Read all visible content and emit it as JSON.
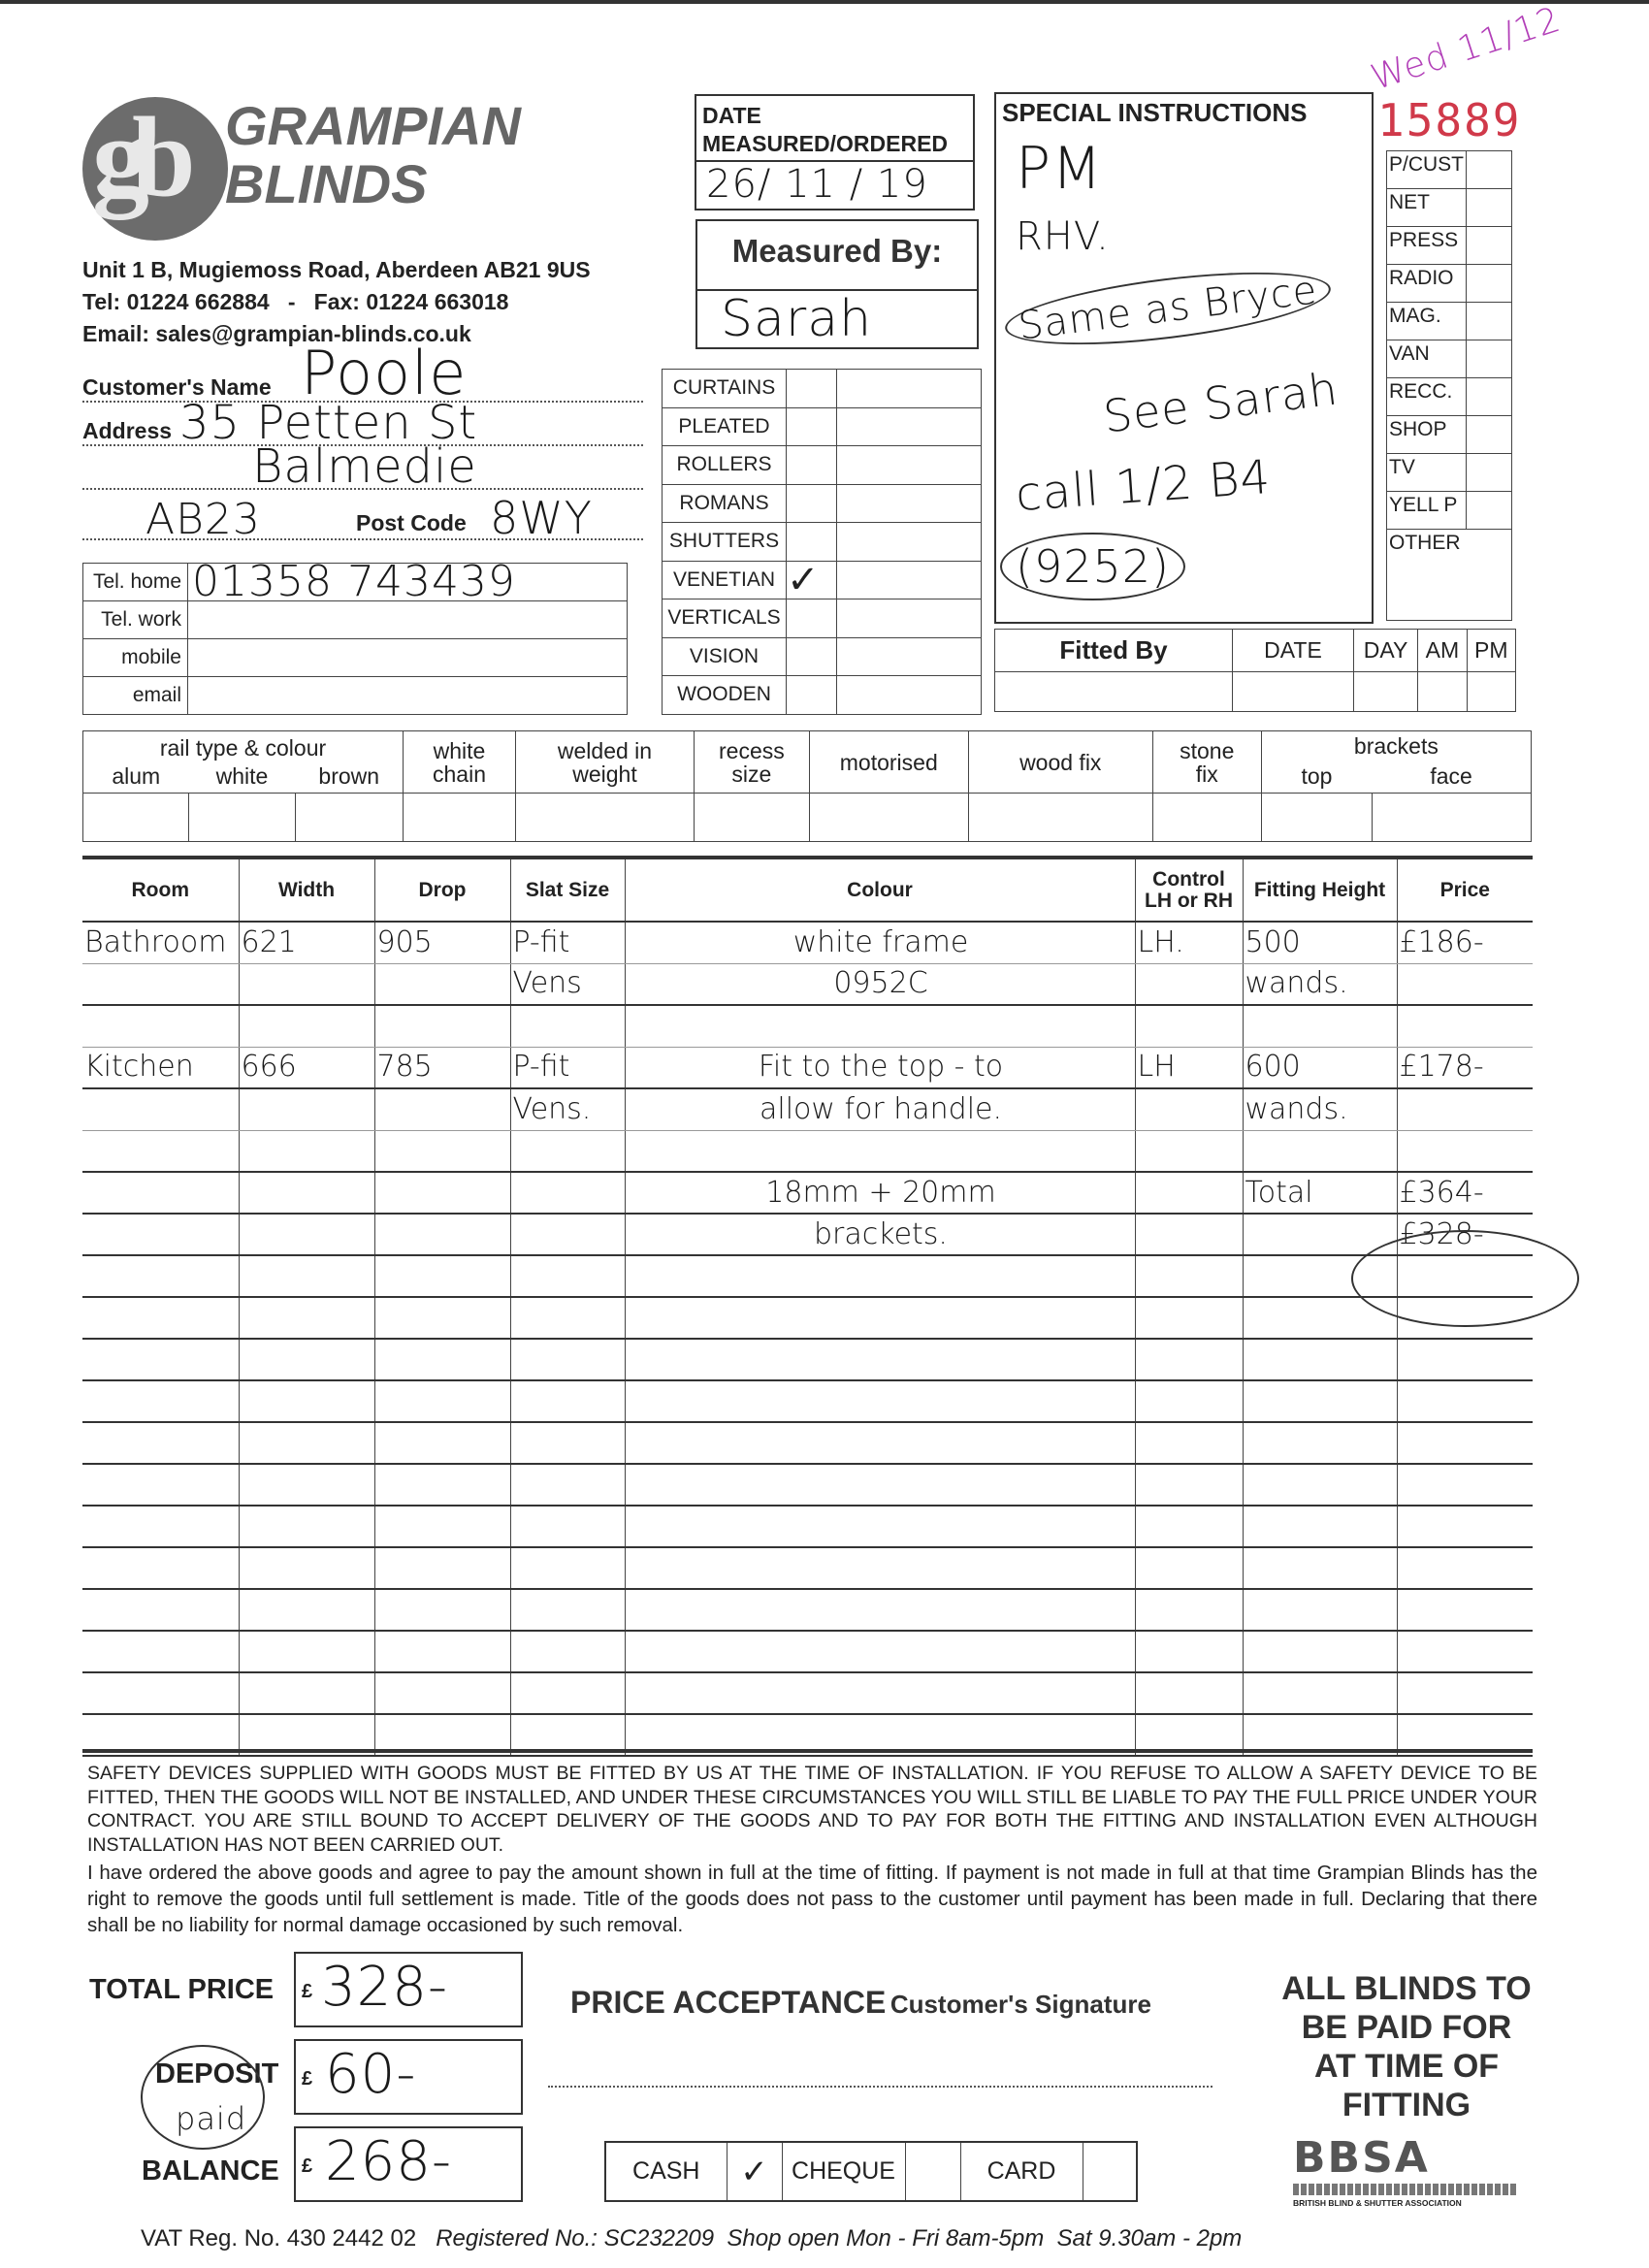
{
  "header": {
    "company_line1": "GRAMPIAN",
    "company_line2": "BLINDS",
    "logo_letters": "gb",
    "address": "Unit 1 B, Mugiemoss Road, Aberdeen AB21 9US",
    "phone": "Tel: 01224 662884   -   Fax: 01224 663018",
    "email": "Email: sales@grampian-blinds.co.uk",
    "date_note": "Wed 11/12",
    "order_number": "15889",
    "accent": "#d0394a",
    "note_color": "#b23fb8"
  },
  "date_box": {
    "label": "DATE MEASURED/ORDERED",
    "value": "26/ 11 / 19"
  },
  "measured_by": {
    "label": "Measured By:",
    "value": "Sarah"
  },
  "customer": {
    "name_label": "Customer's Name",
    "name": "Poole",
    "address_label": "Address",
    "address1": "35 Petten St",
    "address2": "Balmedie",
    "address3": "AB23",
    "postcode_label": "Post Code",
    "postcode": "8WY"
  },
  "contacts": [
    {
      "label": "Tel. home",
      "value": "01358 743439"
    },
    {
      "label": "Tel. work",
      "value": ""
    },
    {
      "label": "mobile",
      "value": ""
    },
    {
      "label": "email",
      "value": ""
    }
  ],
  "blind_types": [
    {
      "label": "CURTAINS",
      "checked": false
    },
    {
      "label": "PLEATED",
      "checked": false
    },
    {
      "label": "ROLLERS",
      "checked": false
    },
    {
      "label": "ROMANS",
      "checked": false
    },
    {
      "label": "SHUTTERS",
      "checked": false
    },
    {
      "label": "VENETIAN",
      "checked": true,
      "mark": "✓"
    },
    {
      "label": "VERTICALS",
      "checked": false
    },
    {
      "label": "VISION",
      "checked": false
    },
    {
      "label": "WOODEN",
      "checked": false
    }
  ],
  "special_instructions": {
    "label": "SPECIAL INSTRUCTIONS",
    "lines": [
      "PM",
      "RHV.",
      "Same as Bryce",
      "See Sarah",
      "call 1/2 B4",
      "(9252)"
    ]
  },
  "sources": [
    "P/CUST",
    "NET",
    "PRESS",
    "RADIO",
    "MAG.",
    "VAN",
    "RECC.",
    "SHOP",
    "TV",
    "YELL P",
    "OTHER"
  ],
  "fitted": {
    "label": "Fitted By",
    "date": "DATE",
    "day": "DAY",
    "am": "AM",
    "pm": "PM"
  },
  "rail": {
    "rail_type": "rail type & colour",
    "alum": "alum",
    "white": "white",
    "brown": "brown",
    "white_chain": "white chain",
    "welded": "welded in weight",
    "recess": "recess size",
    "motorised": "motorised",
    "wood_fix": "wood fix",
    "stone_fix": "stone fix",
    "brackets": "brackets",
    "top": "top",
    "face": "face"
  },
  "table": {
    "headers": [
      "Room",
      "Width",
      "Drop",
      "Slat Size",
      "Colour",
      "Control LH or RH",
      "Fitting Height",
      "Price"
    ],
    "rows": [
      [
        "Bathroom",
        "621",
        "905",
        "P-fit",
        "white frame",
        "LH.",
        "500",
        "£186-"
      ],
      [
        "",
        "",
        "",
        "Vens",
        "0952C",
        "",
        "wands.",
        ""
      ],
      [
        "",
        "",
        "",
        "",
        "",
        "",
        "",
        ""
      ],
      [
        "Kitchen",
        "666",
        "785",
        "P-fit",
        "Fit to the top - to",
        "LH",
        "600",
        "£178-"
      ],
      [
        "",
        "",
        "",
        "Vens.",
        "allow for handle.",
        "",
        "wands.",
        ""
      ],
      [
        "",
        "",
        "",
        "",
        "",
        "",
        "",
        ""
      ],
      [
        "",
        "",
        "",
        "",
        "18mm + 20mm",
        "",
        "Total",
        "£364-"
      ],
      [
        "",
        "",
        "",
        "",
        "brackets.",
        "",
        "",
        "£328-"
      ],
      [
        "",
        "",
        "",
        "",
        "",
        "",
        "",
        ""
      ],
      [
        "",
        "",
        "",
        "",
        "",
        "",
        "",
        ""
      ],
      [
        "",
        "",
        "",
        "",
        "",
        "",
        "",
        ""
      ],
      [
        "",
        "",
        "",
        "",
        "",
        "",
        "",
        ""
      ],
      [
        "",
        "",
        "",
        "",
        "",
        "",
        "",
        ""
      ],
      [
        "",
        "",
        "",
        "",
        "",
        "",
        "",
        ""
      ],
      [
        "",
        "",
        "",
        "",
        "",
        "",
        "",
        ""
      ],
      [
        "",
        "",
        "",
        "",
        "",
        "",
        "",
        ""
      ],
      [
        "",
        "",
        "",
        "",
        "",
        "",
        "",
        ""
      ],
      [
        "",
        "",
        "",
        "",
        "",
        "",
        "",
        ""
      ],
      [
        "",
        "",
        "",
        "",
        "",
        "",
        "",
        ""
      ],
      [
        "",
        "",
        "",
        "",
        "",
        "",
        "",
        ""
      ]
    ]
  },
  "terms": {
    "safety": "SAFETY DEVICES SUPPLIED WITH GOODS MUST BE FITTED BY US AT THE TIME OF INSTALLATION. IF YOU REFUSE TO ALLOW A SAFETY DEVICE TO BE FITTED, THEN THE GOODS WILL NOT BE INSTALLED, AND UNDER THESE CIRCUMSTANCES YOU WILL STILL BE LIABLE TO PAY THE FULL PRICE UNDER YOUR CONTRACT. YOU ARE STILL BOUND TO ACCEPT DELIVERY OF THE GOODS AND TO PAY FOR BOTH THE FITTING AND INSTALLATION EVEN ALTHOUGH INSTALLATION HAS NOT BEEN CARRIED OUT.",
    "agreement": "I have ordered the above goods and agree to pay the amount shown in full at the time of fitting. If payment is not made in full at that time Grampian Blinds has the right to remove the goods until full settlement is made. Title of the goods does not pass to the customer until payment has been made in full. Declaring that there shall be no liability for normal damage occasioned by such removal."
  },
  "totals": {
    "currency": "£",
    "total_label": "TOTAL PRICE",
    "total": "328-",
    "deposit_label": "DEPOSIT",
    "deposit_note": "paid",
    "deposit": "60-",
    "balance_label": "BALANCE",
    "balance": "268-"
  },
  "acceptance": {
    "title": "PRICE ACCEPTANCE",
    "subtitle": "Customer's Signature"
  },
  "payment": {
    "cash": "CASH",
    "cheque": "CHEQUE",
    "card": "CARD",
    "mark": "✓"
  },
  "notice": [
    "ALL BLINDS TO",
    "BE PAID FOR",
    "AT TIME OF",
    "FITTING"
  ],
  "bbsa": {
    "logo": "BBSA",
    "caption": "BRITISH BLIND & SHUTTER ASSOCIATION"
  },
  "footer": {
    "vat": "VAT Reg. No. 430 2442 02",
    "reg": "Registered No.: SC232209  Shop open Mon - Fri 8am-5pm  Sat 9.30am - 2pm"
  }
}
